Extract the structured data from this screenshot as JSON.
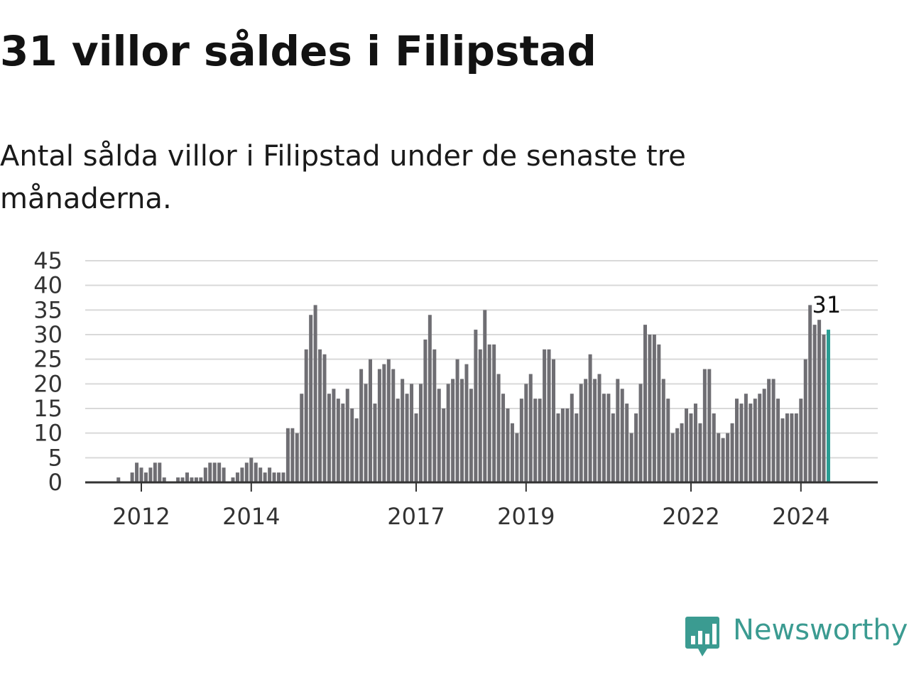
{
  "title": "31 villor såldes i Filipstad",
  "subtitle": "Antal sålda villor i Filipstad under de senaste tre månaderna.",
  "brand": {
    "name": "Newsworthy",
    "color": "#3b9b91",
    "icon": "newsworthy-logo-icon"
  },
  "colors": {
    "bar": "#6f6e73",
    "highlight": "#2a9d93",
    "grid": "#d9d9d9",
    "axis": "#333333",
    "text": "#333333"
  },
  "chart_data": {
    "type": "bar",
    "start": "2011-01",
    "ylim": [
      0,
      45
    ],
    "yticks": [
      "0",
      "5",
      "10",
      "15",
      "20",
      "25",
      "30",
      "35",
      "40",
      "45"
    ],
    "xtick_labels": [
      "2012",
      "2014",
      "2017",
      "2019",
      "2022",
      "2024"
    ],
    "xlabel": "",
    "ylabel": "",
    "grid": true,
    "values": [
      0,
      0,
      0,
      0,
      0,
      0,
      0,
      1,
      0,
      0,
      2,
      4,
      3,
      2,
      3,
      4,
      4,
      1,
      0,
      0,
      1,
      1,
      2,
      1,
      1,
      1,
      3,
      4,
      4,
      4,
      3,
      0,
      1,
      2,
      3,
      4,
      5,
      4,
      3,
      2,
      3,
      2,
      2,
      2,
      11,
      11,
      10,
      18,
      27,
      34,
      36,
      27,
      26,
      18,
      19,
      17,
      16,
      19,
      15,
      13,
      23,
      20,
      25,
      16,
      23,
      24,
      25,
      23,
      17,
      21,
      18,
      20,
      14,
      20,
      29,
      34,
      27,
      19,
      15,
      20,
      21,
      25,
      21,
      24,
      19,
      31,
      27,
      35,
      28,
      28,
      22,
      18,
      15,
      12,
      10,
      17,
      20,
      22,
      17,
      17,
      27,
      27,
      25,
      14,
      15,
      15,
      18,
      14,
      20,
      21,
      26,
      21,
      22,
      18,
      18,
      14,
      21,
      19,
      16,
      10,
      14,
      20,
      32,
      30,
      30,
      28,
      21,
      17,
      10,
      11,
      12,
      15,
      14,
      16,
      12,
      23,
      23,
      14,
      10,
      9,
      10,
      12,
      17,
      16,
      18,
      16,
      17,
      18,
      19,
      21,
      21,
      17,
      13,
      14,
      14,
      14,
      17,
      25,
      36,
      32,
      33,
      30,
      31
    ],
    "highlight_label": "31"
  }
}
